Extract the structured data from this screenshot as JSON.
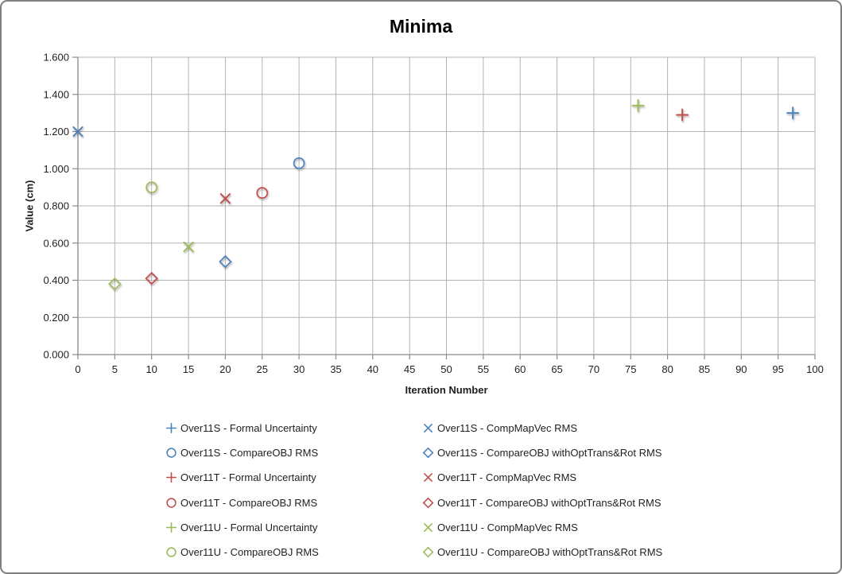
{
  "chart_data": {
    "type": "scatter",
    "title": "Minima",
    "xlabel": "Iteration Number",
    "ylabel": "Value (cm)",
    "xlim": [
      0,
      100
    ],
    "ylim": [
      0,
      1.6
    ],
    "grid": true,
    "legend_position": "bottom-two-columns",
    "x_ticks": [
      0,
      5,
      10,
      15,
      20,
      25,
      30,
      35,
      40,
      45,
      50,
      55,
      60,
      65,
      70,
      75,
      80,
      85,
      90,
      95,
      100
    ],
    "x_tick_labels": [
      "0",
      "5",
      "10",
      "15",
      "20",
      "25",
      "30",
      "35",
      "40",
      "45",
      "50",
      "55",
      "60",
      "65",
      "70",
      "75",
      "80",
      "85",
      "90",
      "95",
      "100"
    ],
    "y_ticks": [
      0,
      0.2,
      0.4,
      0.6,
      0.8,
      1.0,
      1.2,
      1.4,
      1.6
    ],
    "y_tick_labels": [
      "0.000",
      "0.200",
      "0.400",
      "0.600",
      "0.800",
      "1.000",
      "1.200",
      "1.400",
      "1.600"
    ],
    "series": [
      {
        "name": "Over11S - Formal Uncertainty",
        "marker": "plus",
        "color": "#4F81BD",
        "points": [
          [
            97,
            1.3
          ]
        ]
      },
      {
        "name": "Over11S - CompMapVec RMS",
        "marker": "cross",
        "color": "#4F81BD",
        "points": [
          [
            0,
            1.2
          ]
        ]
      },
      {
        "name": "Over11S - CompareOBJ RMS",
        "marker": "circle",
        "color": "#4F81BD",
        "points": [
          [
            30,
            1.03
          ]
        ]
      },
      {
        "name": "Over11S - CompareOBJ withOptTrans&Rot RMS",
        "marker": "diamond",
        "color": "#4F81BD",
        "points": [
          [
            20,
            0.5
          ]
        ]
      },
      {
        "name": "Over11T - Formal Uncertainty",
        "marker": "plus",
        "color": "#C0504D",
        "points": [
          [
            82,
            1.29
          ]
        ]
      },
      {
        "name": "Over11T - CompMapVec RMS",
        "marker": "cross",
        "color": "#C0504D",
        "points": [
          [
            20,
            0.84
          ]
        ]
      },
      {
        "name": "Over11T - CompareOBJ RMS",
        "marker": "circle",
        "color": "#C0504D",
        "points": [
          [
            25,
            0.87
          ]
        ]
      },
      {
        "name": "Over11T - CompareOBJ withOptTrans&Rot RMS",
        "marker": "diamond",
        "color": "#C0504D",
        "points": [
          [
            10,
            0.41
          ]
        ]
      },
      {
        "name": "Over11U - Formal Uncertainty",
        "marker": "plus",
        "color": "#9BBB59",
        "points": [
          [
            76,
            1.34
          ]
        ]
      },
      {
        "name": "Over11U - CompMapVec RMS",
        "marker": "cross",
        "color": "#9BBB59",
        "points": [
          [
            15,
            0.58
          ]
        ]
      },
      {
        "name": "Over11U - CompareOBJ RMS",
        "marker": "circle",
        "color": "#9BBB59",
        "points": [
          [
            10,
            0.9
          ]
        ]
      },
      {
        "name": "Over11U - CompareOBJ withOptTrans&Rot RMS",
        "marker": "diamond",
        "color": "#9BBB59",
        "points": [
          [
            5,
            0.38
          ]
        ]
      }
    ]
  },
  "colors": {
    "gridline": "#b3b3b3",
    "axis": "#898989",
    "tick_text": "#1f1f1f",
    "series_blue": "#4F81BD",
    "series_red": "#C0504D",
    "series_green": "#9BBB59",
    "frame_border": "#7f7f7f"
  }
}
